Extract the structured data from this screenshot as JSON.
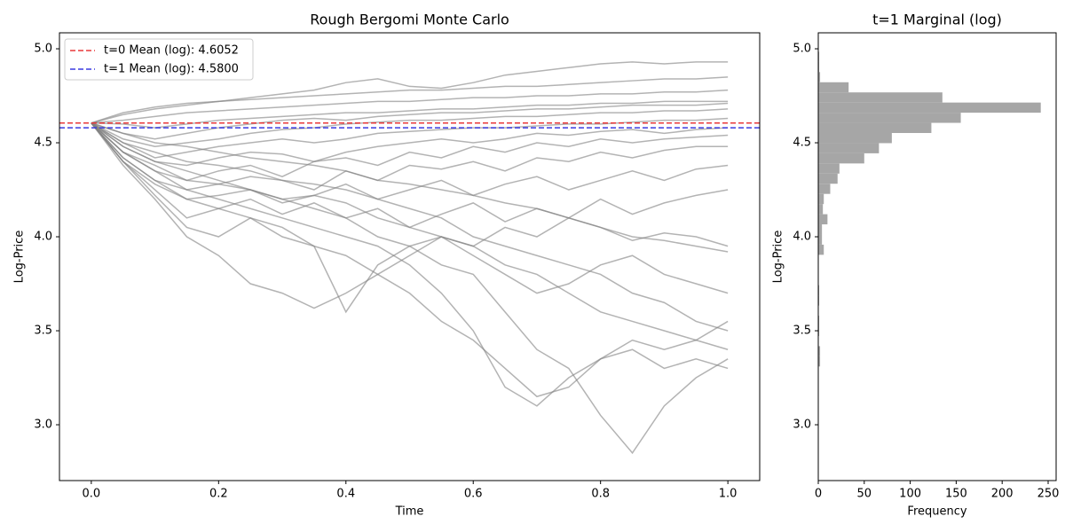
{
  "chart_data": [
    {
      "type": "line",
      "title": "Rough Bergomi Monte Carlo",
      "x_label": "Time",
      "y_label": "Log-Price",
      "xlim": [
        -0.05,
        1.05
      ],
      "ylim": [
        2.703,
        5.085
      ],
      "xticks": [
        {
          "value": 0,
          "label": "0.0"
        },
        0.2,
        0.4,
        0.6,
        0.8,
        {
          "value": 1,
          "label": "1.0"
        }
      ],
      "yticks": [
        {
          "value": 3,
          "label": "3.0"
        },
        3.5,
        {
          "value": 4,
          "label": "4.0"
        },
        4.5,
        {
          "value": 5,
          "label": "5.0"
        }
      ],
      "color": "#808080",
      "alpha": 0.6,
      "legend": "upper left",
      "x": [
        0,
        0.05,
        0.1,
        0.15,
        0.2,
        0.25,
        0.3,
        0.35,
        0.4,
        0.45,
        0.5,
        0.55,
        0.6,
        0.65,
        0.7,
        0.75,
        0.8,
        0.85,
        0.9,
        0.95,
        1.0
      ],
      "series": [
        {
          "values": [
            4.6052,
            4.66,
            4.69,
            4.71,
            4.72,
            4.73,
            4.74,
            4.75,
            4.76,
            4.77,
            4.78,
            4.78,
            4.79,
            4.8,
            4.8,
            4.81,
            4.82,
            4.83,
            4.84,
            4.84,
            4.85
          ]
        },
        {
          "values": [
            4.6052,
            4.65,
            4.68,
            4.7,
            4.72,
            4.74,
            4.76,
            4.78,
            4.82,
            4.84,
            4.8,
            4.79,
            4.82,
            4.86,
            4.88,
            4.9,
            4.92,
            4.93,
            4.92,
            4.93,
            4.93
          ]
        },
        {
          "values": [
            4.6052,
            4.62,
            4.64,
            4.66,
            4.67,
            4.68,
            4.69,
            4.7,
            4.71,
            4.72,
            4.72,
            4.73,
            4.74,
            4.74,
            4.75,
            4.75,
            4.76,
            4.76,
            4.77,
            4.77,
            4.78
          ]
        },
        {
          "values": [
            4.6052,
            4.6,
            4.58,
            4.6,
            4.62,
            4.63,
            4.64,
            4.65,
            4.66,
            4.66,
            4.67,
            4.68,
            4.68,
            4.69,
            4.7,
            4.7,
            4.71,
            4.71,
            4.72,
            4.72,
            4.72
          ]
        },
        {
          "values": [
            4.6052,
            4.55,
            4.52,
            4.55,
            4.58,
            4.6,
            4.62,
            4.63,
            4.62,
            4.64,
            4.65,
            4.66,
            4.66,
            4.67,
            4.68,
            4.68,
            4.69,
            4.7,
            4.7,
            4.7,
            4.71
          ]
        },
        {
          "values": [
            4.6052,
            4.52,
            4.48,
            4.5,
            4.52,
            4.55,
            4.57,
            4.58,
            4.6,
            4.61,
            4.62,
            4.62,
            4.63,
            4.64,
            4.64,
            4.65,
            4.66,
            4.66,
            4.67,
            4.67,
            4.68
          ]
        },
        {
          "values": [
            4.6052,
            4.5,
            4.42,
            4.45,
            4.48,
            4.5,
            4.52,
            4.5,
            4.52,
            4.55,
            4.56,
            4.57,
            4.58,
            4.58,
            4.59,
            4.6,
            4.6,
            4.61,
            4.62,
            4.62,
            4.63
          ]
        },
        {
          "values": [
            4.6052,
            4.48,
            4.4,
            4.38,
            4.42,
            4.45,
            4.44,
            4.4,
            4.45,
            4.48,
            4.5,
            4.52,
            4.5,
            4.52,
            4.55,
            4.54,
            4.56,
            4.57,
            4.55,
            4.57,
            4.58
          ]
        },
        {
          "values": [
            4.6052,
            4.45,
            4.35,
            4.3,
            4.35,
            4.38,
            4.32,
            4.4,
            4.42,
            4.38,
            4.45,
            4.42,
            4.48,
            4.45,
            4.5,
            4.48,
            4.52,
            4.5,
            4.52,
            4.53,
            4.54
          ]
        },
        {
          "values": [
            4.6052,
            4.42,
            4.3,
            4.25,
            4.28,
            4.32,
            4.3,
            4.25,
            4.35,
            4.3,
            4.38,
            4.36,
            4.4,
            4.35,
            4.42,
            4.4,
            4.45,
            4.42,
            4.46,
            4.48,
            4.48
          ]
        },
        {
          "values": [
            4.6052,
            4.4,
            4.28,
            4.2,
            4.22,
            4.25,
            4.18,
            4.22,
            4.28,
            4.2,
            4.25,
            4.3,
            4.22,
            4.28,
            4.32,
            4.25,
            4.3,
            4.35,
            4.3,
            4.36,
            4.38
          ]
        },
        {
          "values": [
            4.6052,
            4.4,
            4.25,
            4.1,
            4.15,
            4.2,
            4.12,
            4.18,
            4.1,
            4.15,
            4.05,
            4.12,
            4.18,
            4.08,
            4.15,
            4.1,
            4.2,
            4.12,
            4.18,
            4.22,
            4.25
          ]
        },
        {
          "values": [
            4.6052,
            4.38,
            4.2,
            4.0,
            3.9,
            3.75,
            3.7,
            3.62,
            3.7,
            3.8,
            3.9,
            4.0,
            3.95,
            4.05,
            4.0,
            4.1,
            4.05,
            3.98,
            4.02,
            4.0,
            3.95
          ]
        },
        {
          "values": [
            4.6052,
            4.4,
            4.22,
            4.05,
            4.0,
            4.1,
            4.05,
            3.95,
            3.6,
            3.85,
            3.95,
            4.0,
            3.9,
            3.8,
            3.7,
            3.75,
            3.85,
            3.9,
            3.8,
            3.75,
            3.7
          ]
        },
        {
          "values": [
            4.6052,
            4.42,
            4.3,
            4.2,
            4.15,
            4.1,
            4.0,
            3.95,
            3.9,
            3.8,
            3.7,
            3.55,
            3.45,
            3.3,
            3.15,
            3.2,
            3.35,
            3.4,
            3.3,
            3.35,
            3.3
          ]
        },
        {
          "values": [
            4.6052,
            4.45,
            4.35,
            4.25,
            4.2,
            4.15,
            4.1,
            4.05,
            4.0,
            3.95,
            3.85,
            3.7,
            3.5,
            3.2,
            3.1,
            3.25,
            3.35,
            3.45,
            3.4,
            3.45,
            3.55
          ]
        },
        {
          "values": [
            4.6052,
            4.45,
            4.38,
            4.3,
            4.28,
            4.25,
            4.2,
            4.15,
            4.1,
            4.0,
            3.95,
            3.85,
            3.8,
            3.6,
            3.4,
            3.3,
            3.05,
            2.85,
            3.1,
            3.25,
            3.35
          ]
        },
        {
          "values": [
            4.6052,
            4.48,
            4.4,
            4.35,
            4.3,
            4.25,
            4.2,
            4.22,
            4.18,
            4.1,
            4.05,
            4.0,
            3.95,
            3.85,
            3.8,
            3.7,
            3.6,
            3.55,
            3.5,
            3.45,
            3.4
          ]
        },
        {
          "values": [
            4.6052,
            4.5,
            4.45,
            4.4,
            4.38,
            4.35,
            4.3,
            4.28,
            4.25,
            4.2,
            4.15,
            4.1,
            4.0,
            3.95,
            3.9,
            3.85,
            3.8,
            3.7,
            3.65,
            3.55,
            3.5
          ]
        },
        {
          "values": [
            4.6052,
            4.55,
            4.5,
            4.48,
            4.45,
            4.42,
            4.4,
            4.38,
            4.35,
            4.3,
            4.28,
            4.25,
            4.22,
            4.18,
            4.15,
            4.1,
            4.05,
            4.0,
            3.98,
            3.95,
            3.92
          ]
        }
      ],
      "hlines": [
        {
          "name": "t=0 Mean (log): 4.6052",
          "value": 4.6052,
          "color": "#e8393a"
        },
        {
          "name": "t=1 Mean (log): 4.5800",
          "value": 4.58,
          "color": "#3a3ae0"
        }
      ]
    },
    {
      "type": "histogram",
      "orientation": "horizontal",
      "title": "t=1 Marginal (log)",
      "x_label": "Frequency",
      "y_label": "Log-Price",
      "xlim": [
        0,
        258.7
      ],
      "ylim": [
        2.703,
        5.085
      ],
      "xticks": [
        0,
        50,
        100,
        150,
        200,
        250
      ],
      "yticks": [
        {
          "value": 3,
          "label": "3.0"
        },
        3.5,
        {
          "value": 4,
          "label": "4.0"
        },
        4.5,
        {
          "value": 5,
          "label": "5.0"
        }
      ],
      "color": "#a6a6a6",
      "bins": [
        3.31,
        3.364,
        3.418,
        3.472,
        3.526,
        3.58,
        3.634,
        3.688,
        3.742,
        3.796,
        3.85,
        3.904,
        3.958,
        4.012,
        4.066,
        4.12,
        4.174,
        4.228,
        4.282,
        4.336,
        4.39,
        4.444,
        4.498,
        4.552,
        4.606,
        4.66,
        4.714,
        4.768,
        4.822,
        4.876,
        4.93,
        4.984
      ],
      "counts": [
        2,
        2,
        0,
        1,
        1,
        0,
        1,
        1,
        0,
        0,
        0,
        6,
        4,
        4,
        10,
        5,
        6,
        13,
        21,
        23,
        50,
        66,
        80,
        123,
        155,
        242,
        135,
        33,
        2,
        1,
        1
      ]
    }
  ]
}
